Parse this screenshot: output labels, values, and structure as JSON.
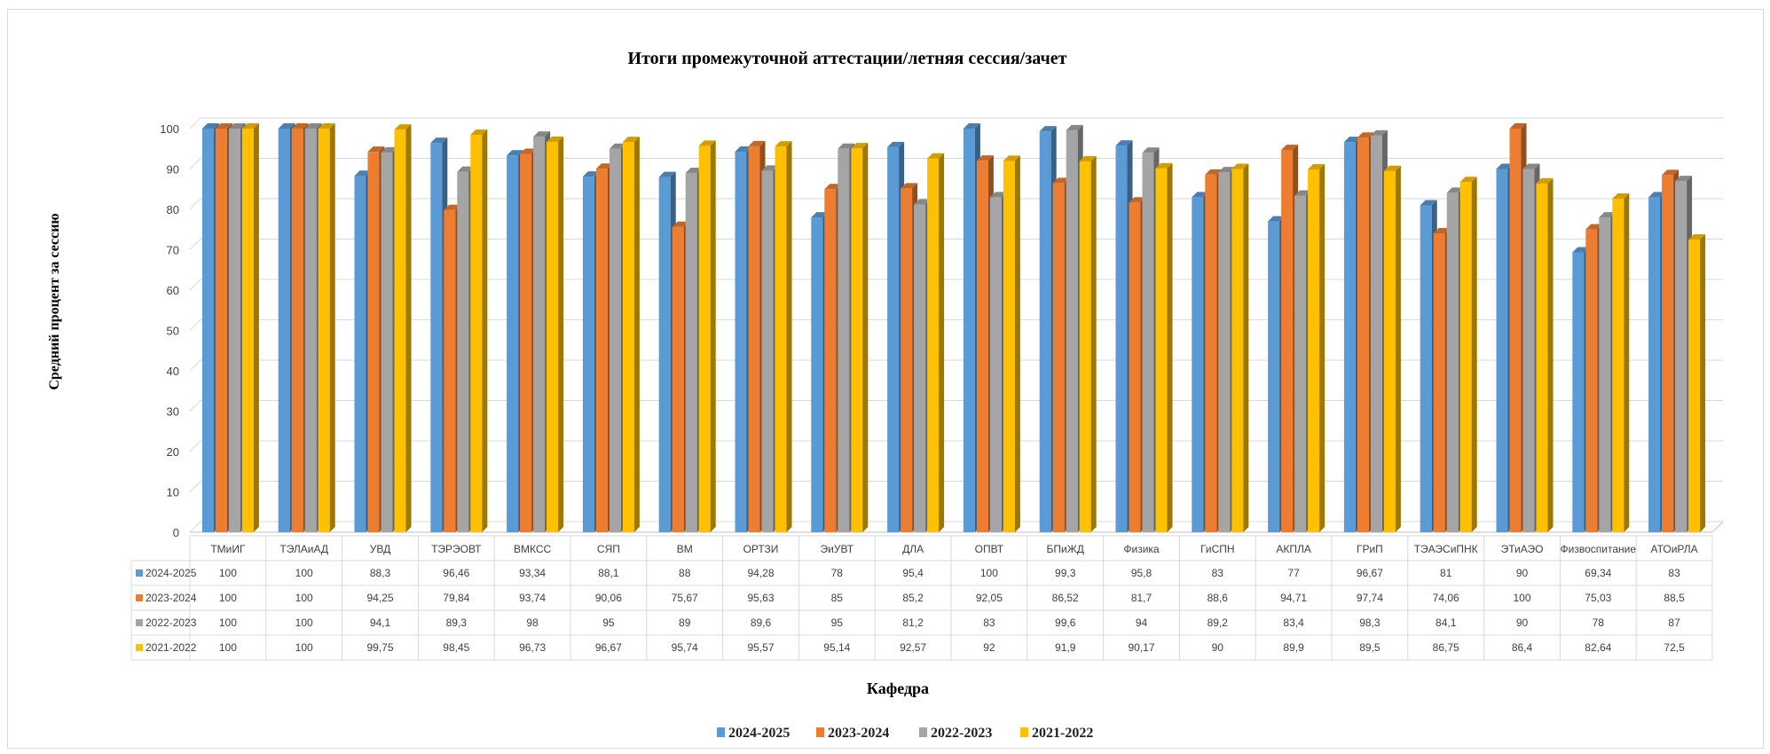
{
  "chart_data": {
    "type": "bar",
    "title": "Итоги промежуточной аттестации/летняя сессия/зачет",
    "xlabel": "Кафедра",
    "ylabel": "Средний процент за сессию",
    "ylim": [
      0,
      100
    ],
    "yticks": [
      0,
      10,
      20,
      30,
      40,
      50,
      60,
      70,
      80,
      90,
      100
    ],
    "grid": true,
    "legend_position": "bottom",
    "data_table": true,
    "categories": [
      "ТМиИГ",
      "ТЭЛАиАД",
      "УВД",
      "ТЭРЭОВТ",
      "ВМКСС",
      "СЯП",
      "ВМ",
      "ОРТЗИ",
      "ЭиУВТ",
      "ДЛА",
      "ОПВТ",
      "БПиЖД",
      "Физика",
      "ГиСПН",
      "АКПЛА",
      "ГРиП",
      "ТЭАЭСиПНК",
      "ЭТиАЭО",
      "Физвоспитание",
      "АТОиРЛА"
    ],
    "series": [
      {
        "name": "2024-2025",
        "color": "#5B9BD5",
        "values": [
          100,
          100,
          88.3,
          96.46,
          93.34,
          88.1,
          88,
          94.28,
          78,
          95.4,
          100,
          99.3,
          95.8,
          83,
          77,
          96.67,
          81,
          90,
          69.34,
          83
        ],
        "labels": [
          "100",
          "100",
          "88,3",
          "96,46",
          "93,34",
          "88,1",
          "88",
          "94,28",
          "78",
          "95,4",
          "100",
          "99,3",
          "95,8",
          "83",
          "77",
          "96,67",
          "81",
          "90",
          "69,34",
          "83"
        ]
      },
      {
        "name": "2023-2024",
        "color": "#ED7D31",
        "values": [
          100,
          100,
          94.25,
          79.84,
          93.74,
          90.06,
          75.67,
          95.63,
          85,
          85.2,
          92.05,
          86.52,
          81.7,
          88.6,
          94.71,
          97.74,
          74.06,
          100,
          75.03,
          88.5
        ],
        "labels": [
          "100",
          "100",
          "94,25",
          "79,84",
          "93,74",
          "90,06",
          "75,67",
          "95,63",
          "85",
          "85,2",
          "92,05",
          "86,52",
          "81,7",
          "88,6",
          "94,71",
          "97,74",
          "74,06",
          "100",
          "75,03",
          "88,5"
        ]
      },
      {
        "name": "2022-2023",
        "color": "#A5A5A5",
        "values": [
          100,
          100,
          94.1,
          89.3,
          98,
          95,
          89,
          89.6,
          95,
          81.2,
          83,
          99.6,
          94,
          89.2,
          83.4,
          98.3,
          84.1,
          90,
          78,
          87
        ],
        "labels": [
          "100",
          "100",
          "94,1",
          "89,3",
          "98",
          "95",
          "89",
          "89,6",
          "95",
          "81,2",
          "83",
          "99,6",
          "94",
          "89,2",
          "83,4",
          "98,3",
          "84,1",
          "90",
          "78",
          "87"
        ]
      },
      {
        "name": "2021-2022",
        "color": "#FFC000",
        "values": [
          100,
          100,
          99.75,
          98.45,
          96.73,
          96.67,
          95.74,
          95.57,
          95.14,
          92.57,
          92,
          91.9,
          90.17,
          90,
          89.9,
          89.5,
          86.75,
          86.4,
          82.64,
          72.5
        ],
        "labels": [
          "100",
          "100",
          "99,75",
          "98,45",
          "96,73",
          "96,67",
          "95,74",
          "95,57",
          "95,14",
          "92,57",
          "92",
          "91,9",
          "90,17",
          "90",
          "89,9",
          "89,5",
          "86,75",
          "86,4",
          "82,64",
          "72,5"
        ]
      }
    ]
  }
}
